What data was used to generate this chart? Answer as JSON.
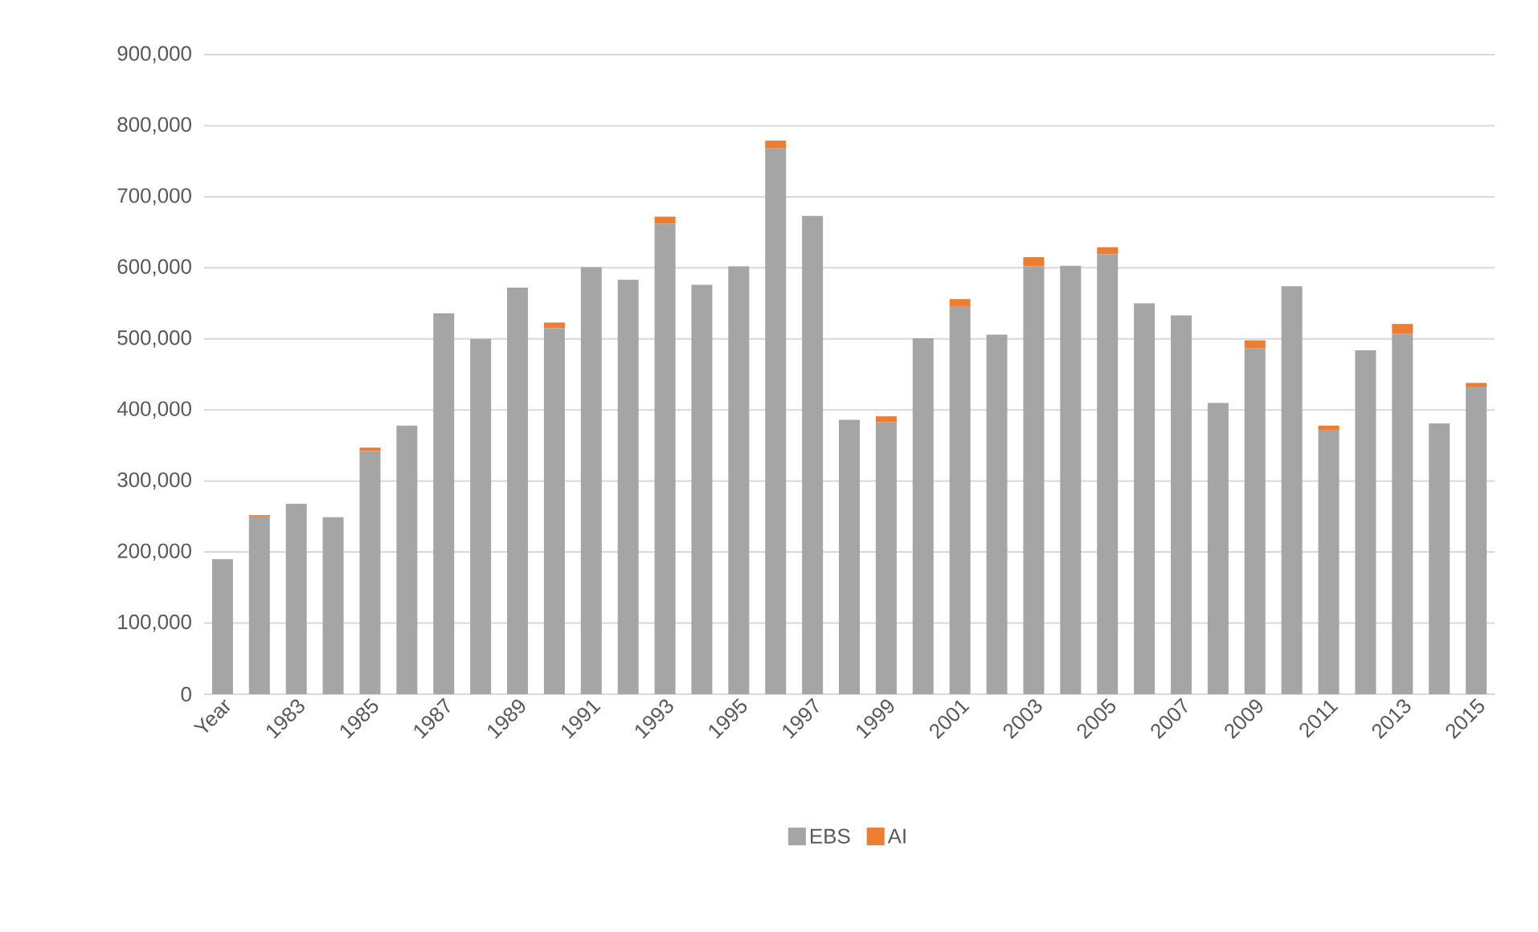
{
  "chart_data": {
    "type": "bar",
    "stacked": true,
    "categories": [
      "Year",
      null,
      "1983",
      null,
      "1985",
      null,
      "1987",
      null,
      "1989",
      null,
      "1991",
      null,
      "1993",
      null,
      "1995",
      null,
      "1997",
      null,
      "1999",
      null,
      "2001",
      null,
      "2003",
      null,
      "2005",
      null,
      "2007",
      null,
      "2009",
      null,
      "2011",
      null,
      "2013",
      null,
      "2015"
    ],
    "series": [
      {
        "name": "EBS",
        "color": "#a5a5a5",
        "values": [
          190000,
          250000,
          268000,
          249000,
          342000,
          378000,
          536000,
          500000,
          572000,
          515000,
          601000,
          583000,
          662000,
          576000,
          602000,
          768000,
          673000,
          386000,
          383000,
          501000,
          546000,
          506000,
          602000,
          603000,
          619000,
          550000,
          533000,
          410000,
          487000,
          574000,
          372000,
          484000,
          507000,
          381000,
          432000
        ]
      },
      {
        "name": "AI",
        "color": "#ed7d31",
        "values": [
          0,
          2000,
          0,
          0,
          5000,
          0,
          0,
          0,
          0,
          8000,
          0,
          0,
          10000,
          0,
          0,
          11000,
          0,
          0,
          8000,
          0,
          10000,
          0,
          13000,
          0,
          10000,
          0,
          0,
          0,
          11000,
          0,
          6000,
          0,
          14000,
          0,
          6000
        ]
      }
    ],
    "ylim": [
      0,
      900000
    ],
    "yticks": [
      {
        "value": 0,
        "label": "0"
      },
      {
        "value": 100000,
        "label": "100,000"
      },
      {
        "value": 200000,
        "label": "200,000"
      },
      {
        "value": 300000,
        "label": "300,000"
      },
      {
        "value": 400000,
        "label": "400,000"
      },
      {
        "value": 500000,
        "label": "500,000"
      },
      {
        "value": 600000,
        "label": "600,000"
      },
      {
        "value": 700000,
        "label": "700,000"
      },
      {
        "value": 800000,
        "label": "800,000"
      },
      {
        "value": 900000,
        "label": "900,000"
      }
    ],
    "grid": "y",
    "legend": "bottom"
  }
}
